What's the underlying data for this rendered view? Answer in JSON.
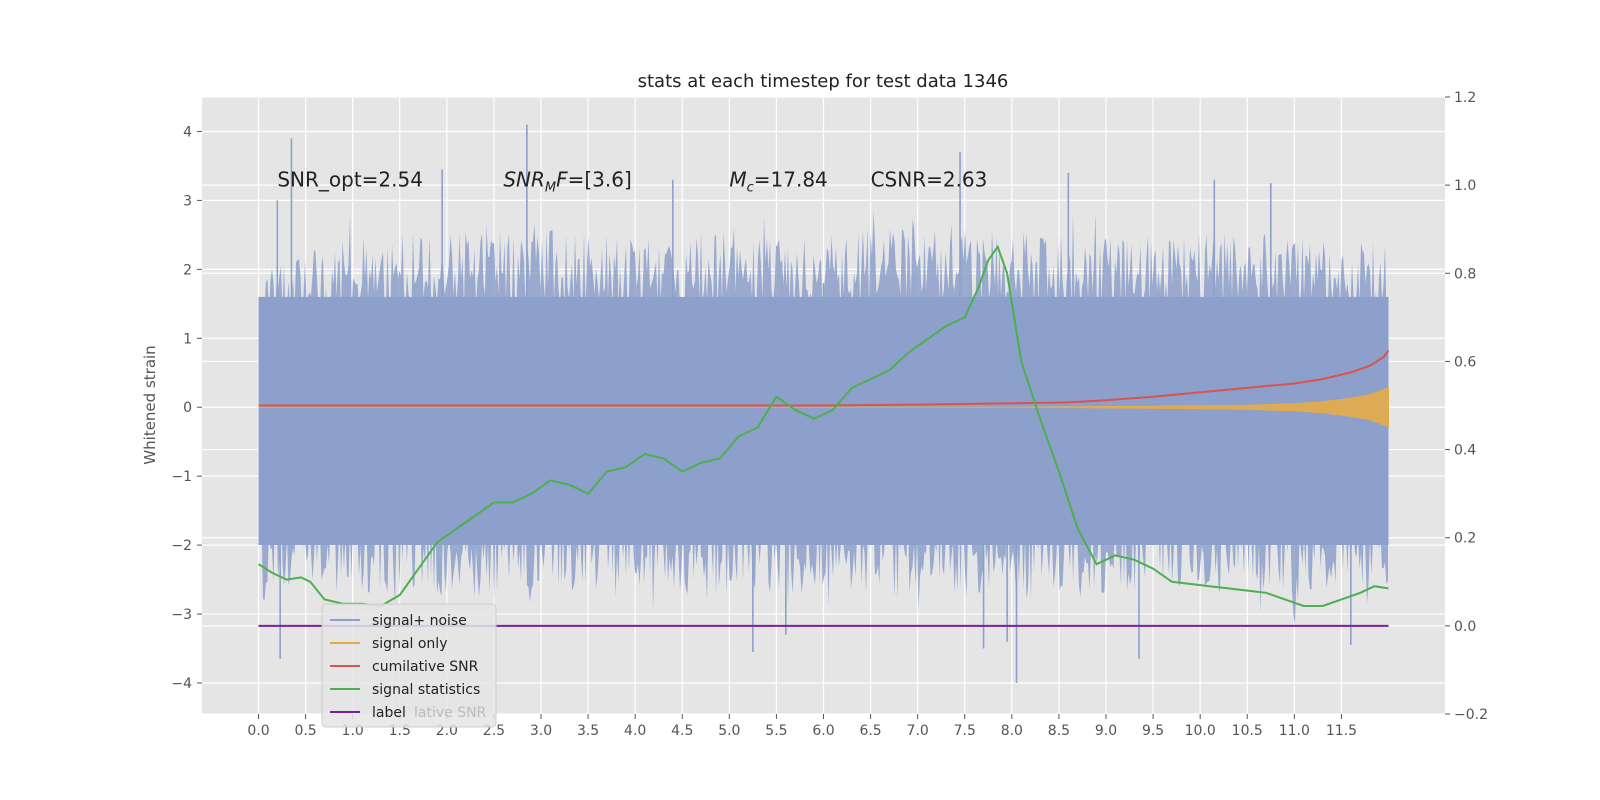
{
  "chart_data": {
    "type": "line",
    "title": "stats at each timestep for test data 1346",
    "ylabel": "Whitened strain",
    "xlabel": "",
    "xlim": [
      -0.6,
      12.6
    ],
    "ylim": [
      -4.45,
      4.5
    ],
    "y2lim": [
      -0.2,
      1.2
    ],
    "grid": true,
    "legend_position": "lower-left",
    "x_ticks": [
      "0.0",
      "0.5",
      "1.0",
      "1.5",
      "2.0",
      "2.5",
      "3.0",
      "3.5",
      "4.0",
      "4.5",
      "5.0",
      "5.5",
      "6.0",
      "6.5",
      "7.0",
      "7.5",
      "8.0",
      "8.5",
      "9.0",
      "9.5",
      "10.0",
      "10.5",
      "11.0",
      "11.5"
    ],
    "y_ticks": [
      "4",
      "3",
      "2",
      "1",
      "0",
      "−1",
      "−2",
      "−3",
      "−4"
    ],
    "y2_ticks": [
      "1.2",
      "1.0",
      "0.8",
      "0.6",
      "0.4",
      "0.2",
      "0.0",
      "−0.2"
    ],
    "annotations": [
      {
        "text": "SNR_opt=2.54",
        "x": 0.2,
        "y": 3.3
      },
      {
        "text": "SNR_MF=[3.6]",
        "x": 2.6,
        "y": 3.3
      },
      {
        "text": "M_c=17.84",
        "x": 5.0,
        "y": 3.3
      },
      {
        "text": "CSNR=2.63",
        "x": 6.5,
        "y": 3.3
      }
    ],
    "colors": {
      "background": "#e5e5e5",
      "grid": "#ffffff",
      "noise": "#8da0cb",
      "signal": "#e6ab48",
      "cumulative": "#d9534f",
      "statistics": "#4caf50",
      "label": "#7b1fa2"
    },
    "series": [
      {
        "name": "signal+ noise",
        "axis": "left",
        "description_range": [
          -4.0,
          4.1
        ],
        "envelope": {
          "x": [
            0.0,
            1.0,
            2.0,
            3.0,
            4.0,
            5.0,
            6.0,
            7.0,
            8.0,
            9.0,
            10.0,
            11.0,
            12.0
          ],
          "upper": [
            2.0,
            2.5,
            2.6,
            2.7,
            2.5,
            2.6,
            2.5,
            2.7,
            2.6,
            2.5,
            2.6,
            2.5,
            2.4
          ],
          "lower": [
            -2.6,
            -2.7,
            -2.8,
            -2.7,
            -2.6,
            -2.8,
            -2.7,
            -2.7,
            -2.9,
            -2.7,
            -2.6,
            -2.7,
            -2.6
          ]
        },
        "spikes": [
          {
            "x": 0.2,
            "y": 3.0
          },
          {
            "x": 0.23,
            "y": -3.65
          },
          {
            "x": 0.35,
            "y": 3.9
          },
          {
            "x": 1.95,
            "y": 3.45
          },
          {
            "x": 2.85,
            "y": 4.1
          },
          {
            "x": 4.4,
            "y": 3.3
          },
          {
            "x": 5.25,
            "y": -3.55
          },
          {
            "x": 5.6,
            "y": -3.3
          },
          {
            "x": 6.0,
            "y": 1.8
          },
          {
            "x": 7.45,
            "y": 3.7
          },
          {
            "x": 7.7,
            "y": -3.5
          },
          {
            "x": 7.95,
            "y": -3.4
          },
          {
            "x": 8.05,
            "y": -4.0
          },
          {
            "x": 8.6,
            "y": 3.4
          },
          {
            "x": 9.35,
            "y": -3.65
          },
          {
            "x": 10.15,
            "y": 3.3
          },
          {
            "x": 10.75,
            "y": 3.25
          },
          {
            "x": 11.6,
            "y": -3.45
          }
        ]
      },
      {
        "name": "signal only",
        "axis": "left",
        "x": [
          0.0,
          8.0,
          9.0,
          10.0,
          10.5,
          11.0,
          11.3,
          11.6,
          11.8,
          12.0
        ],
        "amplitude": [
          0.0,
          0.0,
          0.01,
          0.02,
          0.03,
          0.05,
          0.08,
          0.13,
          0.18,
          0.28
        ]
      },
      {
        "name": "cumilative SNR",
        "axis": "right",
        "x": [
          0.0,
          1.0,
          2.0,
          3.0,
          4.0,
          5.0,
          6.0,
          7.0,
          8.0,
          8.6,
          9.0,
          9.5,
          10.0,
          10.5,
          11.0,
          11.3,
          11.6,
          11.8,
          11.95,
          12.0
        ],
        "values": [
          0.5,
          0.5,
          0.5,
          0.5,
          0.5,
          0.5,
          0.5,
          0.502,
          0.505,
          0.507,
          0.512,
          0.52,
          0.53,
          0.54,
          0.55,
          0.56,
          0.575,
          0.59,
          0.61,
          0.625
        ]
      },
      {
        "name": "signal statistics",
        "axis": "right",
        "x": [
          0.0,
          0.15,
          0.3,
          0.45,
          0.55,
          0.7,
          0.9,
          1.1,
          1.3,
          1.5,
          1.7,
          1.9,
          2.1,
          2.3,
          2.5,
          2.7,
          2.9,
          3.1,
          3.3,
          3.5,
          3.7,
          3.9,
          4.1,
          4.3,
          4.5,
          4.7,
          4.9,
          5.1,
          5.3,
          5.5,
          5.7,
          5.9,
          6.1,
          6.3,
          6.5,
          6.7,
          6.9,
          7.1,
          7.3,
          7.5,
          7.65,
          7.75,
          7.85,
          7.95,
          8.1,
          8.3,
          8.5,
          8.7,
          8.9,
          9.1,
          9.3,
          9.5,
          9.7,
          9.9,
          10.1,
          10.3,
          10.5,
          10.7,
          10.9,
          11.1,
          11.3,
          11.5,
          11.7,
          11.85,
          12.0
        ],
        "values": [
          0.14,
          0.12,
          0.105,
          0.11,
          0.1,
          0.06,
          0.05,
          0.05,
          0.045,
          0.07,
          0.13,
          0.19,
          0.22,
          0.25,
          0.28,
          0.28,
          0.3,
          0.33,
          0.32,
          0.3,
          0.35,
          0.36,
          0.39,
          0.38,
          0.35,
          0.37,
          0.38,
          0.43,
          0.45,
          0.52,
          0.49,
          0.47,
          0.49,
          0.54,
          0.56,
          0.58,
          0.62,
          0.65,
          0.68,
          0.7,
          0.77,
          0.83,
          0.86,
          0.8,
          0.6,
          0.47,
          0.35,
          0.22,
          0.14,
          0.16,
          0.15,
          0.13,
          0.1,
          0.095,
          0.09,
          0.085,
          0.08,
          0.075,
          0.06,
          0.045,
          0.045,
          0.06,
          0.075,
          0.09,
          0.085
        ]
      },
      {
        "name": "label",
        "axis": "right",
        "x": [
          0.0,
          12.0
        ],
        "values": [
          0.0,
          0.0
        ]
      }
    ],
    "legend": [
      {
        "label": "signal+ noise",
        "color": "#8da0cb"
      },
      {
        "label": "signal only",
        "color": "#e6ab48"
      },
      {
        "label": "cumilative SNR",
        "color": "#d9534f"
      },
      {
        "label": "signal statistics",
        "color": "#4caf50"
      },
      {
        "label": "label",
        "color": "#7b1fa2"
      }
    ],
    "legend_overlap_text": "lative SNR"
  }
}
